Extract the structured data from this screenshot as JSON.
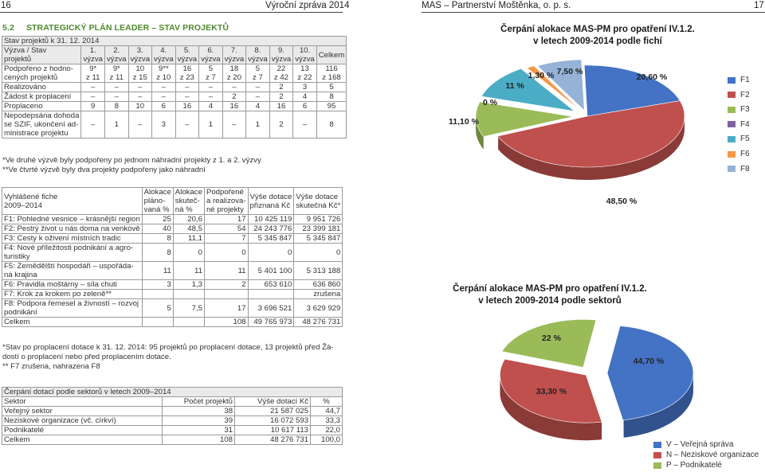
{
  "header": {
    "page_left": "16",
    "left_title": "Výroční zpráva 2014",
    "right_title": "MAS – Partnerství Moštěnka, o. p. s.",
    "page_right": "17"
  },
  "section": {
    "number": "5.2",
    "title": "STRATEGICKÝ PLÁN LEADER – STAV PROJEKTŮ"
  },
  "table1": {
    "caption": "Stav projektů k 31. 12. 2014",
    "head_label_1": "Výzva / Stav",
    "head_label_2": "projektů",
    "head_nums": [
      "1.",
      "2.",
      "3.",
      "4.",
      "5.",
      "6.",
      "7.",
      "8.",
      "9.",
      "10."
    ],
    "vyzva_word": "výzva",
    "total_label": "Celkem",
    "rows": [
      {
        "label": [
          "Podpořeno z hodno-",
          "cených projektů"
        ],
        "top": [
          "9*",
          "9*",
          "10",
          "9**",
          "16",
          "5",
          "18",
          "5",
          "22",
          "13",
          "116"
        ],
        "bottom": [
          "z 11",
          "z 11",
          "z 15",
          "z 10",
          "z 23",
          "z 7",
          "z 20",
          "z 7",
          "z 42",
          "z 22",
          "z 168"
        ]
      },
      {
        "label": [
          "Realizováno"
        ],
        "values": [
          "–",
          "–",
          "–",
          "–",
          "–",
          "–",
          "–",
          "–",
          "2",
          "3",
          "5"
        ]
      },
      {
        "label": [
          "Žádost k proplacení"
        ],
        "values": [
          "–",
          "–",
          "–",
          "–",
          "–",
          "–",
          "2",
          "–",
          "2",
          "4",
          "8"
        ]
      },
      {
        "label": [
          "Proplaceno"
        ],
        "values": [
          "9",
          "8",
          "10",
          "6",
          "16",
          "4",
          "16",
          "4",
          "16",
          "6",
          "95"
        ]
      },
      {
        "label": [
          "Nepodepsána dohoda",
          "se SZIF, ukončení ad-",
          "ministrace projektu"
        ],
        "values": [
          "–",
          "1",
          "–",
          "3",
          "–",
          "1",
          "–",
          "1",
          "2",
          "–",
          "8"
        ]
      }
    ],
    "notes": [
      "*Ve druhé výzvě byly podpořeny po jednom náhradní projekty z 1. a 2. výzvy",
      "**Ve čtvrté výzvě byly dva projekty podpořeny jako náhradní"
    ]
  },
  "table2": {
    "head": [
      [
        "Vyhlášené fiche",
        "2009–2014"
      ],
      [
        "Alokace",
        "pláno-",
        "vaná %"
      ],
      [
        "Alokace",
        "skuteč-",
        "ná %"
      ],
      [
        "Podpořené",
        "a realizova-",
        "né projekty"
      ],
      [
        "Výše dotace",
        "přiznaná Kč"
      ],
      [
        "Výše dotace",
        "skutečná Kč*"
      ]
    ],
    "rows": [
      {
        "name": [
          "F1: Pohledné vesnice – krásnější region"
        ],
        "vals": [
          "25",
          "20,6",
          "17",
          "10 425 119",
          "9 951 726"
        ]
      },
      {
        "name": [
          "F2: Pestrý život u nás doma na venkově"
        ],
        "vals": [
          "40",
          "48,5",
          "54",
          "24 243 776",
          "23 399 181"
        ]
      },
      {
        "name": [
          "F3: Cesty k oživení místních tradic"
        ],
        "vals": [
          "8",
          "11,1",
          "7",
          "5 345 847",
          "5 345 847"
        ]
      },
      {
        "name": [
          "F4: Nové příležitosti podnikání a agro-",
          "turistiky"
        ],
        "vals": [
          "8",
          "0",
          "0",
          "0",
          "0"
        ]
      },
      {
        "name": [
          "F5: Zemědělští hospodáři – uspořáda-",
          "ná krajina"
        ],
        "vals": [
          "11",
          "11",
          "11",
          "5 401 100",
          "5 313 188"
        ]
      },
      {
        "name": [
          "F6: Pravidla moštárny – síla chuti"
        ],
        "vals": [
          "3",
          "1,3",
          "2",
          "653 610",
          "636 860"
        ]
      },
      {
        "name": [
          "F7: Krok za krokem po zeleně**"
        ],
        "vals": [
          "",
          "",
          "",
          "",
          "zrušena"
        ]
      },
      {
        "name": [
          "F8: Podpora řemesel a živností – rozvoj",
          "podnikání"
        ],
        "vals": [
          "5",
          "7,5",
          "17",
          "3 696 521",
          "3 629 929"
        ]
      },
      {
        "name": [
          "Celkem"
        ],
        "vals": [
          "",
          "",
          "108",
          "49 765 973",
          "48 276 731"
        ]
      }
    ],
    "notes": [
      "*Stav po proplacení dotace k 31. 12. 2014: 95 projektů po proplacení dotace, 13 projektů před Žá-",
      "dostí o proplacení nebo před proplacením dotace.",
      "** F7 zrušena, nahrazena F8"
    ]
  },
  "table3": {
    "caption": "Čerpání dotací podle sektorů v letech 2009–2014",
    "head": [
      "Sektor",
      "Počet projektů",
      "Výše dotací Kč",
      "%"
    ],
    "rows": [
      [
        "Veřejný sektor",
        "38",
        "21 587 025",
        "44,7"
      ],
      [
        "Neziskové organizace (vč. církví)",
        "39",
        "16 072 593",
        "33,3"
      ],
      [
        "Podnikatelé",
        "31",
        "10 617 113",
        "22,0"
      ],
      [
        "Celkem",
        "108",
        "48 276 731",
        "100,0"
      ]
    ]
  },
  "chart_data": [
    {
      "type": "pie",
      "title": [
        "Čerpání alokace MAS-PM pro opatření IV.1.2.",
        "v letech 2009-2014 podle fichí"
      ],
      "labels": [
        "F1",
        "F2",
        "F3",
        "F4",
        "F5",
        "F6",
        "F8"
      ],
      "values": [
        20.6,
        48.5,
        11.1,
        0,
        11.0,
        1.3,
        7.5
      ],
      "value_labels": [
        "20,60 %",
        "48,50 %",
        "11,10 %",
        "0 %",
        "11 %",
        "1,30 %",
        "7,50 %"
      ],
      "colors": [
        "#4472c4",
        "#c0504d",
        "#9bbb59",
        "#8064a2",
        "#4bacc6",
        "#f79646",
        "#95b3d7"
      ],
      "legend_position": "right"
    },
    {
      "type": "pie",
      "title": [
        "Čerpání alokace MAS-PM pro opatření IV.1.2.",
        "v letech 2009-2014 podle sektorů"
      ],
      "labels": [
        "V – Veřejná správa",
        "N – Neziskové organizace",
        "P – Podnikatelé"
      ],
      "values": [
        44.7,
        33.3,
        22.0
      ],
      "value_labels": [
        "44,70 %",
        "33,30 %",
        "22 %"
      ],
      "colors": [
        "#4472c4",
        "#c0504d",
        "#9bbb59"
      ],
      "legend_position": "bottom-right"
    }
  ]
}
